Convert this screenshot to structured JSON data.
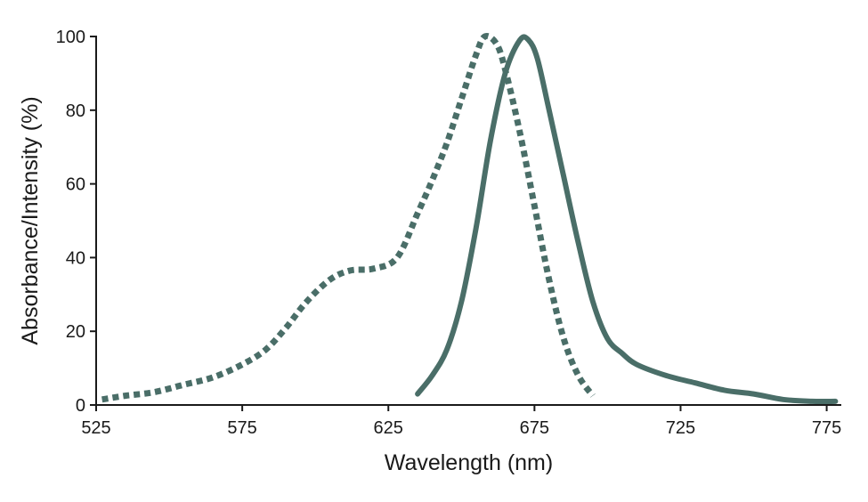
{
  "chart_data": {
    "type": "line",
    "xlabel": "Wavelength (nm)",
    "ylabel": "Absorbance/Intensity (%)",
    "xlim": [
      525,
      780
    ],
    "ylim": [
      0,
      100
    ],
    "x_ticks": [
      525,
      575,
      625,
      675,
      725,
      775
    ],
    "y_ticks": [
      0,
      20,
      40,
      60,
      80,
      100
    ],
    "grid": false,
    "colors": {
      "series": "#4a6e68",
      "axis": "#1a1a1a"
    },
    "series": [
      {
        "style": "dotted",
        "x": [
          527,
          535,
          545,
          555,
          565,
          575,
          583,
          590,
          597,
          605,
          612,
          620,
          628,
          635,
          640,
          645,
          650,
          655,
          658,
          662,
          665,
          670,
          675,
          680,
          685,
          690,
          695
        ],
        "y": [
          1.5,
          2.5,
          3.5,
          5.5,
          7.5,
          11,
          15,
          21,
          28,
          34,
          36.5,
          37,
          40,
          52,
          61,
          71,
          83,
          95,
          100,
          98,
          91,
          74,
          54,
          34,
          18,
          8,
          2.5
        ],
        "name": ""
      },
      {
        "style": "solid",
        "x": [
          635,
          640,
          645,
          650,
          655,
          660,
          665,
          670,
          673,
          676,
          680,
          685,
          690,
          695,
          700,
          705,
          710,
          720,
          730,
          740,
          750,
          760,
          770,
          778
        ],
        "y": [
          3,
          8,
          15,
          28,
          48,
          72,
          90,
          99,
          99,
          94,
          80,
          62,
          44,
          28,
          18,
          14,
          11,
          8,
          6,
          4,
          3,
          1.5,
          1,
          1
        ],
        "name": ""
      }
    ]
  }
}
